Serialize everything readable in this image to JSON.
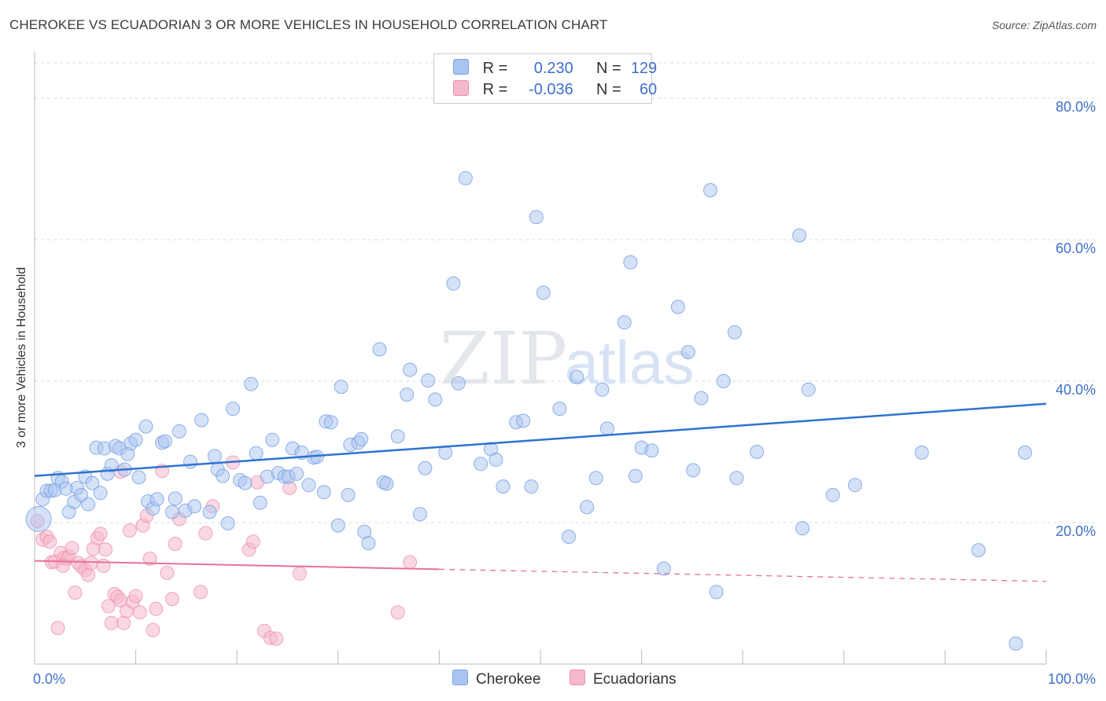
{
  "header": {
    "title": "CHEROKEE VS ECUADORIAN 3 OR MORE VEHICLES IN HOUSEHOLD CORRELATION CHART",
    "source": "Source: ZipAtlas.com"
  },
  "watermark": {
    "zip": "ZIP",
    "atlas": "atlas"
  },
  "legend": {
    "rows": [
      {
        "series": "Cherokee",
        "r_label": "R =",
        "r_value": "0.230",
        "n_label": "N =",
        "n_value": "129"
      },
      {
        "series": "Ecuadorians",
        "r_label": "R =",
        "r_value": "-0.036",
        "n_label": "N =",
        "n_value": "60"
      }
    ]
  },
  "colors": {
    "cherokee_fill": "#a9c4f0",
    "cherokee_stroke": "#7aa3e6",
    "cherokee_line": "#2f72d1",
    "ecuador_fill": "#f6b8cb",
    "ecuador_stroke": "#ee91ad",
    "ecuador_line": "#e8719b",
    "tick_label": "#3f6fcc",
    "grid": "#dddddd"
  },
  "chart_data": {
    "type": "scatter",
    "title": "CHEROKEE VS ECUADORIAN 3 OR MORE VEHICLES IN HOUSEHOLD CORRELATION CHART",
    "xlabel": "",
    "ylabel": "3 or more Vehicles in Household",
    "xlim": [
      0,
      100
    ],
    "ylim": [
      0,
      85
    ],
    "x_tick_labels": [
      "0.0%",
      "100.0%"
    ],
    "y_ticks": [
      20,
      40,
      60,
      80
    ],
    "y_tick_labels": [
      "20.0%",
      "40.0%",
      "60.0%",
      "80.0%"
    ],
    "grid": true,
    "legend_position": "top-center",
    "series": [
      {
        "name": "Cherokee",
        "r": 0.23,
        "n": 129,
        "trend": {
          "x": [
            0,
            100
          ],
          "y": [
            26.6,
            36.8
          ],
          "style": "solid"
        },
        "points": [
          [
            0.4,
            20.5
          ],
          [
            0.8,
            23.3
          ],
          [
            1.2,
            24.5
          ],
          [
            1.6,
            24.5
          ],
          [
            2.0,
            24.6
          ],
          [
            2.3,
            26.3
          ],
          [
            2.7,
            25.8
          ],
          [
            3.1,
            24.8
          ],
          [
            3.4,
            21.5
          ],
          [
            3.9,
            22.9
          ],
          [
            4.2,
            24.9
          ],
          [
            4.6,
            23.9
          ],
          [
            5.0,
            26.5
          ],
          [
            5.3,
            22.6
          ],
          [
            5.7,
            25.6
          ],
          [
            6.1,
            30.6
          ],
          [
            6.5,
            24.2
          ],
          [
            6.9,
            30.5
          ],
          [
            7.2,
            26.9
          ],
          [
            7.6,
            28.1
          ],
          [
            8.0,
            30.8
          ],
          [
            8.4,
            30.5
          ],
          [
            8.9,
            27.5
          ],
          [
            9.2,
            29.7
          ],
          [
            9.5,
            31.2
          ],
          [
            10.0,
            31.7
          ],
          [
            10.3,
            26.4
          ],
          [
            11.0,
            33.6
          ],
          [
            11.2,
            23.0
          ],
          [
            11.7,
            22.0
          ],
          [
            12.1,
            23.3
          ],
          [
            12.6,
            31.3
          ],
          [
            12.9,
            31.5
          ],
          [
            13.6,
            21.5
          ],
          [
            13.9,
            23.4
          ],
          [
            14.3,
            32.9
          ],
          [
            14.9,
            21.7
          ],
          [
            15.4,
            28.6
          ],
          [
            15.8,
            22.3
          ],
          [
            16.5,
            34.5
          ],
          [
            17.3,
            21.5
          ],
          [
            17.8,
            29.4
          ],
          [
            18.1,
            27.5
          ],
          [
            18.6,
            26.6
          ],
          [
            19.1,
            19.9
          ],
          [
            19.6,
            36.1
          ],
          [
            20.3,
            26.0
          ],
          [
            20.8,
            25.6
          ],
          [
            21.4,
            39.6
          ],
          [
            21.9,
            29.8
          ],
          [
            22.3,
            22.8
          ],
          [
            23.0,
            26.5
          ],
          [
            23.5,
            31.7
          ],
          [
            24.1,
            27.0
          ],
          [
            24.7,
            26.5
          ],
          [
            25.1,
            26.5
          ],
          [
            25.5,
            30.5
          ],
          [
            25.9,
            26.9
          ],
          [
            26.4,
            29.9
          ],
          [
            27.1,
            25.3
          ],
          [
            27.6,
            29.2
          ],
          [
            27.9,
            29.3
          ],
          [
            28.6,
            24.3
          ],
          [
            28.8,
            34.3
          ],
          [
            29.3,
            34.2
          ],
          [
            30.0,
            19.6
          ],
          [
            30.3,
            39.2
          ],
          [
            31.0,
            23.9
          ],
          [
            31.2,
            31.0
          ],
          [
            32.0,
            31.3
          ],
          [
            32.3,
            31.8
          ],
          [
            32.6,
            18.7
          ],
          [
            33.0,
            17.1
          ],
          [
            34.1,
            44.5
          ],
          [
            34.5,
            25.7
          ],
          [
            34.8,
            25.5
          ],
          [
            35.9,
            32.2
          ],
          [
            36.8,
            38.1
          ],
          [
            37.1,
            41.6
          ],
          [
            38.1,
            21.2
          ],
          [
            38.6,
            27.7
          ],
          [
            38.9,
            40.1
          ],
          [
            39.6,
            37.4
          ],
          [
            40.6,
            29.9
          ],
          [
            41.4,
            53.8
          ],
          [
            41.9,
            39.7
          ],
          [
            42.6,
            68.7
          ],
          [
            44.1,
            28.3
          ],
          [
            45.1,
            30.4
          ],
          [
            45.6,
            28.9
          ],
          [
            46.3,
            25.1
          ],
          [
            47.6,
            34.2
          ],
          [
            48.3,
            34.4
          ],
          [
            49.1,
            25.1
          ],
          [
            49.6,
            63.2
          ],
          [
            50.3,
            52.5
          ],
          [
            51.9,
            36.1
          ],
          [
            52.8,
            18.0
          ],
          [
            53.6,
            40.6
          ],
          [
            54.6,
            22.2
          ],
          [
            55.5,
            26.3
          ],
          [
            56.1,
            38.8
          ],
          [
            56.6,
            33.3
          ],
          [
            58.3,
            48.3
          ],
          [
            58.9,
            56.8
          ],
          [
            59.4,
            26.6
          ],
          [
            60.0,
            30.6
          ],
          [
            61.0,
            30.2
          ],
          [
            62.2,
            13.5
          ],
          [
            63.6,
            50.5
          ],
          [
            64.6,
            44.1
          ],
          [
            65.1,
            27.4
          ],
          [
            65.9,
            37.6
          ],
          [
            66.8,
            67.0
          ],
          [
            67.4,
            10.2
          ],
          [
            68.1,
            40.0
          ],
          [
            69.2,
            46.9
          ],
          [
            69.4,
            26.3
          ],
          [
            71.4,
            30.0
          ],
          [
            75.6,
            60.6
          ],
          [
            75.9,
            19.2
          ],
          [
            76.5,
            38.8
          ],
          [
            78.9,
            23.9
          ],
          [
            81.1,
            25.3
          ],
          [
            87.7,
            29.9
          ],
          [
            93.3,
            16.1
          ],
          [
            97.0,
            2.9
          ],
          [
            97.9,
            29.9
          ]
        ]
      },
      {
        "name": "Ecuadorians",
        "r": -0.036,
        "n": 60,
        "trend": {
          "x": [
            0,
            40,
            100
          ],
          "y": [
            14.6,
            13.4,
            11.7
          ],
          "style": "solid-then-dashed"
        },
        "points": [
          [
            0.3,
            20.2
          ],
          [
            0.8,
            17.6
          ],
          [
            1.2,
            18.0
          ],
          [
            1.5,
            17.3
          ],
          [
            1.7,
            14.4
          ],
          [
            2.0,
            14.5
          ],
          [
            2.3,
            5.1
          ],
          [
            2.6,
            15.7
          ],
          [
            2.9,
            15.0
          ],
          [
            3.2,
            14.9
          ],
          [
            3.4,
            15.2
          ],
          [
            3.7,
            16.4
          ],
          [
            4.0,
            10.1
          ],
          [
            4.3,
            14.3
          ],
          [
            4.6,
            13.8
          ],
          [
            5.0,
            13.3
          ],
          [
            5.3,
            12.6
          ],
          [
            5.6,
            14.3
          ],
          [
            5.8,
            16.3
          ],
          [
            6.2,
            17.8
          ],
          [
            6.5,
            18.4
          ],
          [
            6.8,
            13.9
          ],
          [
            7.0,
            16.2
          ],
          [
            7.3,
            8.2
          ],
          [
            7.6,
            5.8
          ],
          [
            7.9,
            9.9
          ],
          [
            8.2,
            9.5
          ],
          [
            8.5,
            9.0
          ],
          [
            8.8,
            5.8
          ],
          [
            9.1,
            7.5
          ],
          [
            9.4,
            18.9
          ],
          [
            9.7,
            8.8
          ],
          [
            10.0,
            9.6
          ],
          [
            10.4,
            7.3
          ],
          [
            10.7,
            19.6
          ],
          [
            11.1,
            21.0
          ],
          [
            11.4,
            14.9
          ],
          [
            11.7,
            4.8
          ],
          [
            12.0,
            7.8
          ],
          [
            12.6,
            27.3
          ],
          [
            13.1,
            12.9
          ],
          [
            13.6,
            9.2
          ],
          [
            13.9,
            17.0
          ],
          [
            14.3,
            20.5
          ],
          [
            16.4,
            10.2
          ],
          [
            16.9,
            18.5
          ],
          [
            17.6,
            22.3
          ],
          [
            19.6,
            28.5
          ],
          [
            21.2,
            16.2
          ],
          [
            21.6,
            17.3
          ],
          [
            22.0,
            25.7
          ],
          [
            22.7,
            4.7
          ],
          [
            23.3,
            3.7
          ],
          [
            23.9,
            3.6
          ],
          [
            25.2,
            24.9
          ],
          [
            26.2,
            12.8
          ],
          [
            35.9,
            7.3
          ],
          [
            37.1,
            14.4
          ],
          [
            8.5,
            27.2
          ],
          [
            2.8,
            13.9
          ]
        ]
      }
    ]
  },
  "bottom_legend": {
    "items": [
      {
        "label": "Cherokee"
      },
      {
        "label": "Ecuadorians"
      }
    ]
  }
}
